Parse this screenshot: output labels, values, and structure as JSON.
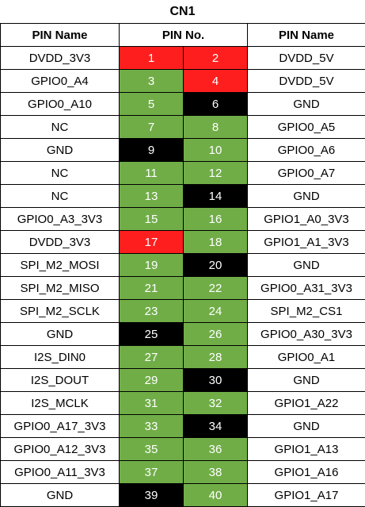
{
  "title": "CN1",
  "headers": {
    "left_name": "PIN Name",
    "pin_no": "PIN No.",
    "right_name": "PIN Name"
  },
  "colors": {
    "power": "#ff1e1e",
    "ground": "#000000",
    "signal": "#70ad47"
  },
  "rows": [
    {
      "left_name": "DVDD_3V3",
      "left_pin": "1",
      "left_type": "power",
      "right_pin": "2",
      "right_type": "power",
      "right_name": "DVDD_5V"
    },
    {
      "left_name": "GPIO0_A4",
      "left_pin": "3",
      "left_type": "io",
      "right_pin": "4",
      "right_type": "power",
      "right_name": "DVDD_5V"
    },
    {
      "left_name": "GPIO0_A10",
      "left_pin": "5",
      "left_type": "io",
      "right_pin": "6",
      "right_type": "gnd",
      "right_name": "GND"
    },
    {
      "left_name": "NC",
      "left_pin": "7",
      "left_type": "io",
      "right_pin": "8",
      "right_type": "io",
      "right_name": "GPIO0_A5"
    },
    {
      "left_name": "GND",
      "left_pin": "9",
      "left_type": "gnd",
      "right_pin": "10",
      "right_type": "io",
      "right_name": "GPIO0_A6"
    },
    {
      "left_name": "NC",
      "left_pin": "11",
      "left_type": "io",
      "right_pin": "12",
      "right_type": "io",
      "right_name": "GPIO0_A7"
    },
    {
      "left_name": "NC",
      "left_pin": "13",
      "left_type": "io",
      "right_pin": "14",
      "right_type": "gnd",
      "right_name": "GND"
    },
    {
      "left_name": "GPIO0_A3_3V3",
      "left_pin": "15",
      "left_type": "io",
      "right_pin": "16",
      "right_type": "io",
      "right_name": "GPIO1_A0_3V3"
    },
    {
      "left_name": "DVDD_3V3",
      "left_pin": "17",
      "left_type": "power",
      "right_pin": "18",
      "right_type": "io",
      "right_name": "GPIO1_A1_3V3"
    },
    {
      "left_name": "SPI_M2_MOSI",
      "left_pin": "19",
      "left_type": "io",
      "right_pin": "20",
      "right_type": "gnd",
      "right_name": "GND"
    },
    {
      "left_name": "SPI_M2_MISO",
      "left_pin": "21",
      "left_type": "io",
      "right_pin": "22",
      "right_type": "io",
      "right_name": "GPIO0_A31_3V3"
    },
    {
      "left_name": "SPI_M2_SCLK",
      "left_pin": "23",
      "left_type": "io",
      "right_pin": "24",
      "right_type": "io",
      "right_name": "SPI_M2_CS1"
    },
    {
      "left_name": "GND",
      "left_pin": "25",
      "left_type": "gnd",
      "right_pin": "26",
      "right_type": "io",
      "right_name": "GPIO0_A30_3V3"
    },
    {
      "left_name": "I2S_DIN0",
      "left_pin": "27",
      "left_type": "io",
      "right_pin": "28",
      "right_type": "io",
      "right_name": "GPIO0_A1"
    },
    {
      "left_name": "I2S_DOUT",
      "left_pin": "29",
      "left_type": "io",
      "right_pin": "30",
      "right_type": "gnd",
      "right_name": "GND"
    },
    {
      "left_name": "I2S_MCLK",
      "left_pin": "31",
      "left_type": "io",
      "right_pin": "32",
      "right_type": "io",
      "right_name": "GPIO1_A22"
    },
    {
      "left_name": "GPIO0_A17_3V3",
      "left_pin": "33",
      "left_type": "io",
      "right_pin": "34",
      "right_type": "gnd",
      "right_name": "GND"
    },
    {
      "left_name": "GPIO0_A12_3V3",
      "left_pin": "35",
      "left_type": "io",
      "right_pin": "36",
      "right_type": "io",
      "right_name": "GPIO1_A13"
    },
    {
      "left_name": "GPIO0_A11_3V3",
      "left_pin": "37",
      "left_type": "io",
      "right_pin": "38",
      "right_type": "io",
      "right_name": "GPIO1_A16"
    },
    {
      "left_name": "GND",
      "left_pin": "39",
      "left_type": "gnd",
      "right_pin": "40",
      "right_type": "io",
      "right_name": "GPIO1_A17"
    }
  ]
}
